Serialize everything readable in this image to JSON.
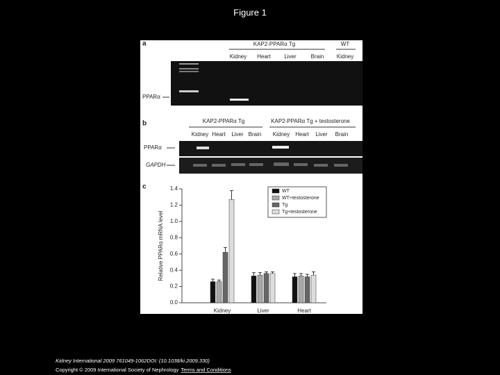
{
  "title": "Figure 1",
  "figure": {
    "panel_a": {
      "letter": "a",
      "groups": [
        "KAP2-PPARα Tg",
        "WT"
      ],
      "lanes": [
        "Kidney",
        "Heart",
        "Liver",
        "Brain",
        "Kidney"
      ],
      "band_label": "PPARα"
    },
    "panel_b": {
      "letter": "b",
      "groups": [
        "KAP2-PPARα Tg",
        "KAP2-PPARα Tg + testosterone"
      ],
      "lanes": [
        "Kidney",
        "Heart",
        "Liver",
        "Brain",
        "Kidney",
        "Heart",
        "Liver",
        "Brain"
      ],
      "band_labels": [
        "PPARα",
        "GAPDH"
      ]
    },
    "panel_c": {
      "letter": "c"
    }
  },
  "chart_data": {
    "type": "bar",
    "y_label": "Relative PPARα mRNA level",
    "categories": [
      "Kidney",
      "Liver",
      "Heart"
    ],
    "series": [
      {
        "name": "WT",
        "color": "#111111",
        "values": [
          0.26,
          0.33,
          0.32
        ],
        "errors": [
          0.03,
          0.04,
          0.04
        ]
      },
      {
        "name": "WT+testosterone",
        "color": "#a8a8a8",
        "values": [
          0.26,
          0.34,
          0.33
        ],
        "errors": [
          0.02,
          0.03,
          0.03
        ]
      },
      {
        "name": "Tg",
        "color": "#666666",
        "values": [
          0.62,
          0.36,
          0.32
        ],
        "errors": [
          0.06,
          0.02,
          0.03
        ]
      },
      {
        "name": "Tg+testosterone",
        "color": "#dddddd",
        "values": [
          1.27,
          0.36,
          0.34
        ],
        "errors": [
          0.11,
          0.02,
          0.04
        ]
      }
    ],
    "ylim": [
      0,
      1.4
    ],
    "yticks": [
      {
        "value": 0,
        "label": "0.0"
      },
      0.2,
      0.4,
      0.6,
      0.8,
      {
        "value": 1,
        "label": "1.0"
      },
      1.2,
      1.4
    ]
  },
  "footer": {
    "citation": "Kidney International 2009 761049-1062DOI: (10.1038/ki.2009.330)",
    "copyright": "Copyright © 2009 International Society of Nephrology",
    "link": "Terms and Conditions"
  }
}
